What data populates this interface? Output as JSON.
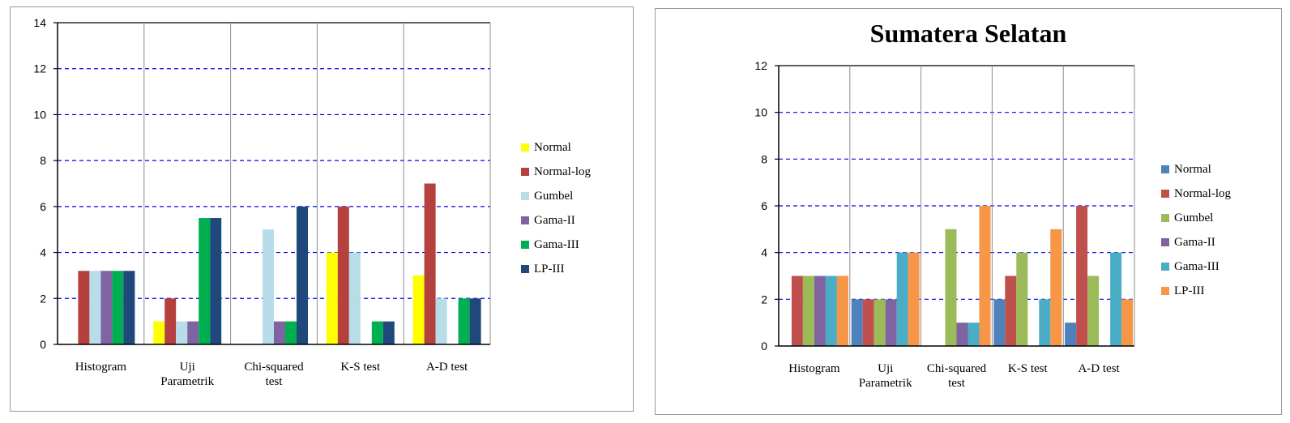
{
  "chart_data": [
    {
      "type": "bar",
      "title": "",
      "xlabel": "",
      "ylabel": "",
      "ylim": [
        0,
        14
      ],
      "yticks": [
        0,
        2,
        4,
        6,
        8,
        10,
        12,
        14
      ],
      "grid": true,
      "legend_position": "right",
      "categories": [
        [
          "Histogram"
        ],
        [
          "Uji",
          "Parametrik"
        ],
        [
          "Chi-squared",
          "test"
        ],
        [
          "K-S test"
        ],
        [
          "A-D test"
        ]
      ],
      "series": [
        {
          "name": "Normal",
          "color": "#ffff00",
          "values": [
            0,
            1,
            0,
            4,
            3
          ]
        },
        {
          "name": "Normal-log",
          "color": "#b5413e",
          "values": [
            3.2,
            2,
            0,
            6,
            7
          ]
        },
        {
          "name": "Gumbel",
          "color": "#b7dde8",
          "values": [
            3.2,
            1,
            5,
            4,
            2
          ]
        },
        {
          "name": "Gama-II",
          "color": "#8064a2",
          "values": [
            3.2,
            1,
            1,
            0,
            0
          ]
        },
        {
          "name": "Gama-III",
          "color": "#00b050",
          "values": [
            3.2,
            5.5,
            1,
            1,
            2
          ]
        },
        {
          "name": "LP-III",
          "color": "#1f497d",
          "values": [
            3.2,
            5.5,
            6,
            1,
            2
          ]
        }
      ]
    },
    {
      "type": "bar",
      "title": "Sumatera Selatan",
      "xlabel": "",
      "ylabel": "",
      "ylim": [
        0,
        12
      ],
      "yticks": [
        0,
        2,
        4,
        6,
        8,
        10,
        12
      ],
      "grid": true,
      "legend_position": "right",
      "categories": [
        [
          "Histogram"
        ],
        [
          "Uji",
          "Parametrik"
        ],
        [
          "Chi-squared",
          "test"
        ],
        [
          "K-S test"
        ],
        [
          "A-D test"
        ]
      ],
      "series": [
        {
          "name": "Normal",
          "color": "#4f81bd",
          "values": [
            0,
            2,
            0,
            2,
            1
          ]
        },
        {
          "name": "Normal-log",
          "color": "#c0504d",
          "values": [
            3,
            2,
            0,
            3,
            6
          ]
        },
        {
          "name": "Gumbel",
          "color": "#9bbb59",
          "values": [
            3,
            2,
            5,
            4,
            3
          ]
        },
        {
          "name": "Gama-II",
          "color": "#8064a2",
          "values": [
            3,
            2,
            1,
            0,
            0
          ]
        },
        {
          "name": "Gama-III",
          "color": "#4bacc6",
          "values": [
            3,
            4,
            1,
            2,
            4
          ]
        },
        {
          "name": "LP-III",
          "color": "#f79646",
          "values": [
            3,
            4,
            6,
            5,
            2
          ]
        }
      ]
    }
  ]
}
